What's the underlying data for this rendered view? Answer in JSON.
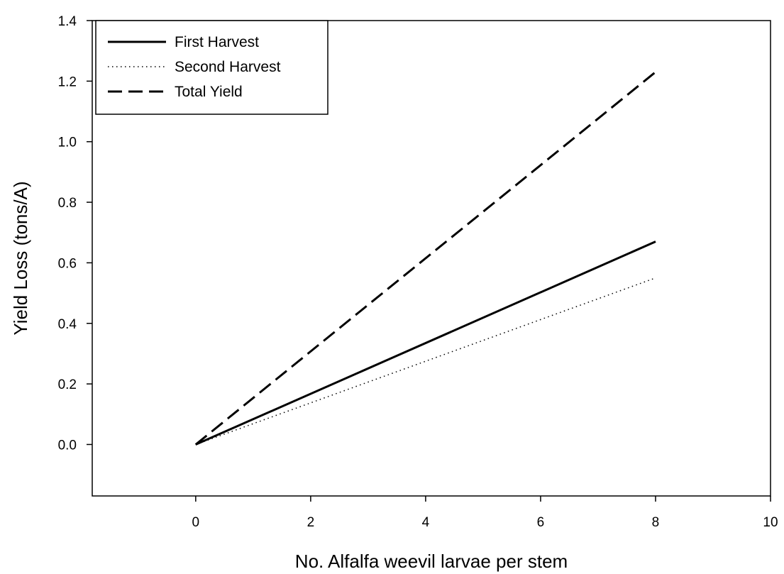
{
  "chart_data": {
    "type": "line",
    "title": "",
    "xlabel": "No. Alfalfa weevil larvae per stem",
    "ylabel": "Yield Loss (tons/A)",
    "xlim": [
      -1.8,
      10
    ],
    "ylim": [
      -0.17,
      1.4
    ],
    "xticks": [
      0,
      2,
      4,
      6,
      8,
      10
    ],
    "xtick_labels": [
      "0",
      "2",
      "4",
      "6",
      "8",
      "10"
    ],
    "yticks": [
      0.0,
      0.2,
      0.4,
      0.6,
      0.8,
      1.0,
      1.2,
      1.4
    ],
    "ytick_labels": [
      "0.0",
      "0.2",
      "0.4",
      "0.6",
      "0.8",
      "1.0",
      "1.2",
      "1.4"
    ],
    "grid": false,
    "legend_position": "top-left",
    "series": [
      {
        "name": "First Harvest",
        "style": "solid",
        "color": "#000000",
        "x": [
          0,
          8
        ],
        "y": [
          0,
          0.67
        ]
      },
      {
        "name": "Second Harvest",
        "style": "dotted",
        "color": "#000000",
        "x": [
          0,
          8
        ],
        "y": [
          0,
          0.55
        ]
      },
      {
        "name": "Total Yield",
        "style": "dashed",
        "color": "#000000",
        "x": [
          0,
          8
        ],
        "y": [
          0,
          1.23
        ]
      }
    ]
  }
}
